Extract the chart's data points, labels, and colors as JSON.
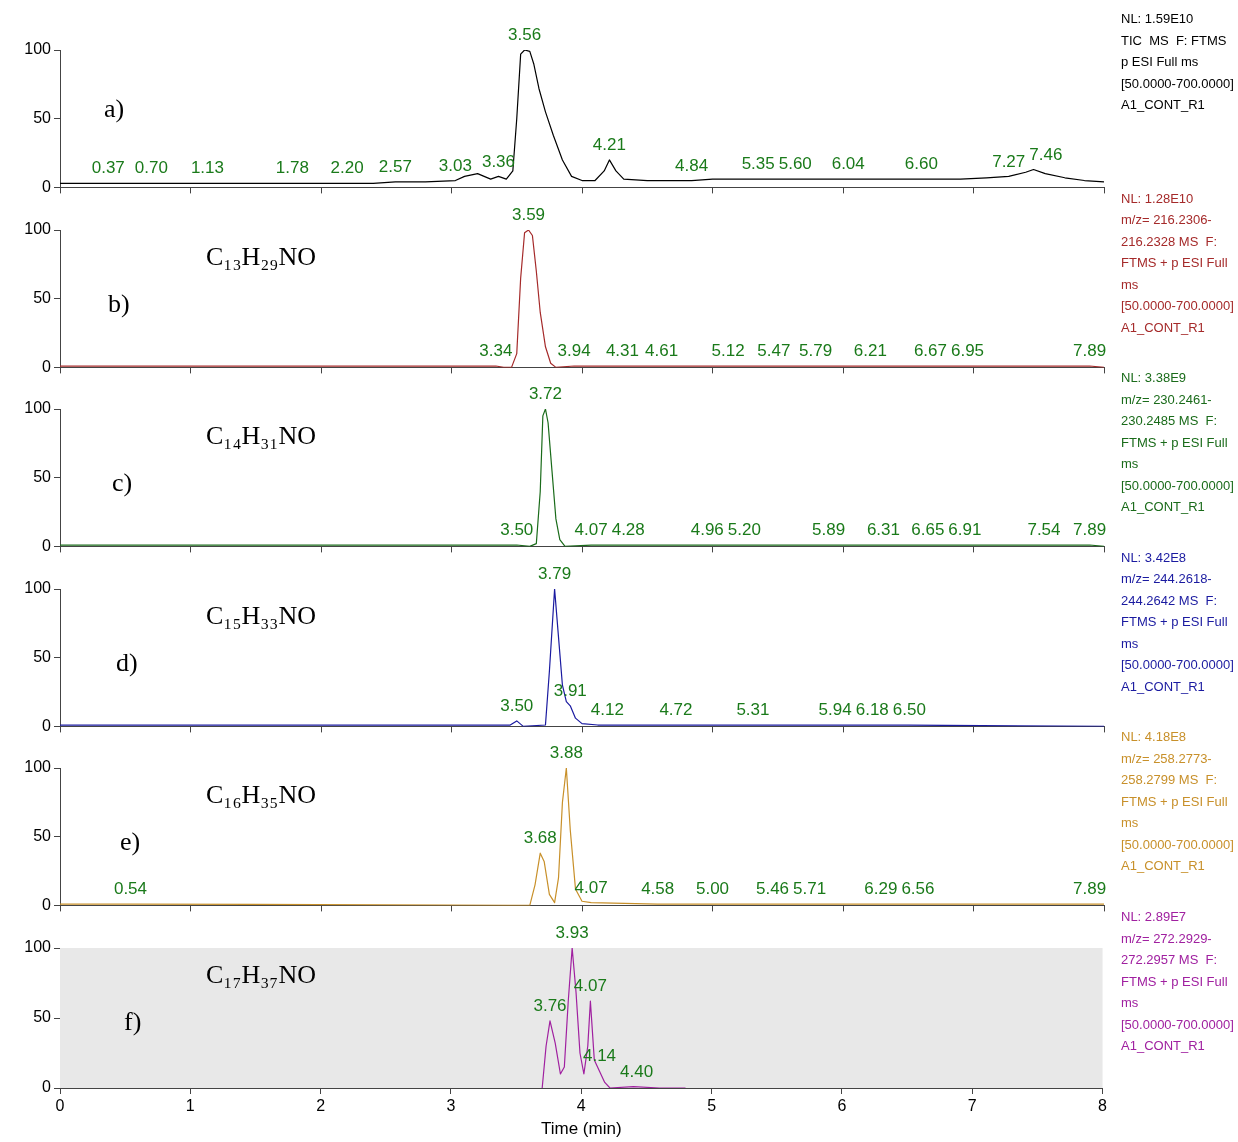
{
  "chart_data": [
    {
      "type": "line",
      "title": "a)",
      "xlim": [
        0,
        8
      ],
      "ylim": [
        0,
        100
      ],
      "yticks": [
        0,
        50,
        100
      ],
      "tick_labels": "y",
      "marker": "none",
      "x": [
        0,
        0.2,
        0.37,
        0.5,
        0.7,
        0.9,
        1.13,
        1.4,
        1.78,
        2.0,
        2.2,
        2.4,
        2.57,
        2.8,
        3.03,
        3.1,
        3.2,
        3.3,
        3.36,
        3.42,
        3.47,
        3.5,
        3.53,
        3.56,
        3.6,
        3.63,
        3.67,
        3.72,
        3.78,
        3.85,
        3.92,
        4.0,
        4.1,
        4.17,
        4.21,
        4.26,
        4.32,
        4.5,
        4.84,
        5.0,
        5.35,
        5.6,
        6.04,
        6.3,
        6.6,
        6.9,
        7.1,
        7.27,
        7.4,
        7.46,
        7.55,
        7.7,
        7.85,
        8.0
      ],
      "series": [
        {
          "color": "#000000",
          "values": [
            3,
            3,
            3,
            3,
            3,
            3,
            3,
            3,
            3,
            3,
            3,
            3,
            4,
            4,
            5,
            8,
            10,
            6,
            8,
            6,
            12,
            50,
            97,
            100,
            99,
            90,
            72,
            55,
            38,
            20,
            8,
            5,
            5,
            12,
            20,
            12,
            6,
            5,
            5,
            6,
            6,
            6,
            6,
            6,
            6,
            6,
            7,
            8,
            11,
            13,
            10,
            7,
            5,
            4
          ]
        }
      ],
      "annotations": [
        "NL: 1.59E10",
        "TIC  MS  F: FTMS",
        "p ESI Full ms",
        "[50.0000-700.0000]",
        "A1_CONT_R1",
        {
          "text": "0.37",
          "x": 0.37,
          "y": 3
        },
        {
          "text": "0.70",
          "x": 0.7,
          "y": 3
        },
        {
          "text": "1.13",
          "x": 1.13,
          "y": 3
        },
        {
          "text": "1.78",
          "x": 1.78,
          "y": 3
        },
        {
          "text": "2.20",
          "x": 2.2,
          "y": 3
        },
        {
          "text": "2.57",
          "x": 2.57,
          "y": 4
        },
        {
          "text": "3.03",
          "x": 3.03,
          "y": 5
        },
        {
          "text": "3.36",
          "x": 3.36,
          "y": 8
        },
        {
          "text": "3.56",
          "x": 3.56,
          "y": 100
        },
        {
          "text": "4.21",
          "x": 4.21,
          "y": 20
        },
        {
          "text": "4.84",
          "x": 4.84,
          "y": 5
        },
        {
          "text": "5.35",
          "x": 5.35,
          "y": 6
        },
        {
          "text": "5.60",
          "x": 5.6,
          "y": 6
        },
        {
          "text": "6.04",
          "x": 6.04,
          "y": 6
        },
        {
          "text": "6.60",
          "x": 6.6,
          "y": 6
        },
        {
          "text": "7.27",
          "x": 7.27,
          "y": 8
        },
        {
          "text": "7.46",
          "x": 7.46,
          "y": 13
        }
      ]
    },
    {
      "type": "line",
      "title": "b)",
      "subtitle": "C₁₃H₂₉NO",
      "xlim": [
        0,
        8
      ],
      "ylim": [
        0,
        100
      ],
      "yticks": [
        0,
        50,
        100
      ],
      "tick_labels": "y",
      "marker": "none",
      "x": [
        0,
        3.3,
        3.34,
        3.4,
        3.46,
        3.5,
        3.53,
        3.56,
        3.59,
        3.62,
        3.65,
        3.68,
        3.72,
        3.76,
        3.8,
        3.94,
        4.31,
        4.61,
        5.12,
        5.47,
        5.79,
        6.21,
        6.67,
        6.95,
        7.89,
        8.0
      ],
      "series": [
        {
          "color": "#a52a2a",
          "values": [
            1,
            1,
            1,
            0,
            0,
            10,
            65,
            98,
            100,
            96,
            70,
            40,
            15,
            3,
            0,
            1,
            1,
            1,
            1,
            1,
            1,
            1,
            1,
            1,
            1,
            0
          ]
        }
      ],
      "annotations": [
        "NL: 1.28E10",
        "m/z= 216.2306-",
        "216.2328 MS  F:",
        "FTMS + p ESI Full",
        "ms",
        "[50.0000-700.0000]",
        "A1_CONT_R1",
        {
          "text": "3.34",
          "x": 3.34,
          "y": 1
        },
        {
          "text": "3.59",
          "x": 3.59,
          "y": 100
        },
        {
          "text": "3.94",
          "x": 3.94,
          "y": 1
        },
        {
          "text": "4.31",
          "x": 4.31,
          "y": 1
        },
        {
          "text": "4.61",
          "x": 4.61,
          "y": 1
        },
        {
          "text": "5.12",
          "x": 5.12,
          "y": 1
        },
        {
          "text": "5.47",
          "x": 5.47,
          "y": 1
        },
        {
          "text": "5.79",
          "x": 5.79,
          "y": 1
        },
        {
          "text": "6.21",
          "x": 6.21,
          "y": 1
        },
        {
          "text": "6.67",
          "x": 6.67,
          "y": 1
        },
        {
          "text": "6.95",
          "x": 6.95,
          "y": 1
        },
        {
          "text": "7.89",
          "x": 7.89,
          "y": 1
        }
      ]
    },
    {
      "type": "line",
      "title": "c)",
      "subtitle": "C₁₄H₃₁NO",
      "xlim": [
        0,
        8
      ],
      "ylim": [
        0,
        100
      ],
      "yticks": [
        0,
        50,
        100
      ],
      "tick_labels": "y",
      "marker": "none",
      "x": [
        0,
        3.5,
        3.6,
        3.65,
        3.68,
        3.7,
        3.72,
        3.74,
        3.77,
        3.8,
        3.83,
        3.87,
        4.07,
        4.28,
        4.96,
        5.2,
        5.89,
        6.31,
        6.65,
        6.91,
        7.54,
        7.89,
        8
      ],
      "series": [
        {
          "color": "#1a6b1a",
          "values": [
            1,
            1,
            0,
            2,
            40,
            95,
            100,
            90,
            55,
            20,
            5,
            0,
            1,
            1,
            1,
            1,
            1,
            1,
            1,
            1,
            1,
            1,
            0
          ]
        }
      ],
      "annotations": [
        "NL: 3.38E9",
        "m/z= 230.2461-",
        "230.2485 MS  F:",
        "FTMS + p ESI Full",
        "ms",
        "[50.0000-700.0000]",
        "A1_CONT_R1",
        {
          "text": "3.50",
          "x": 3.5,
          "y": 1
        },
        {
          "text": "3.72",
          "x": 3.72,
          "y": 100
        },
        {
          "text": "4.07",
          "x": 4.07,
          "y": 1
        },
        {
          "text": "4.28",
          "x": 4.28,
          "y": 1
        },
        {
          "text": "4.96",
          "x": 4.96,
          "y": 1
        },
        {
          "text": "5.20",
          "x": 5.2,
          "y": 1
        },
        {
          "text": "5.89",
          "x": 5.89,
          "y": 1
        },
        {
          "text": "6.31",
          "x": 6.31,
          "y": 1
        },
        {
          "text": "6.65",
          "x": 6.65,
          "y": 1
        },
        {
          "text": "6.91",
          "x": 6.91,
          "y": 1
        },
        {
          "text": "7.54",
          "x": 7.54,
          "y": 1
        },
        {
          "text": "7.89",
          "x": 7.89,
          "y": 1
        }
      ]
    },
    {
      "type": "line",
      "title": "d)",
      "subtitle": "C₁₅H₃₃NO",
      "xlim": [
        0,
        8
      ],
      "ylim": [
        0,
        100
      ],
      "yticks": [
        0,
        50,
        100
      ],
      "tick_labels": "y",
      "marker": "none",
      "x": [
        0,
        3.45,
        3.5,
        3.55,
        3.72,
        3.75,
        3.79,
        3.82,
        3.85,
        3.88,
        3.91,
        3.95,
        4.0,
        4.12,
        4.72,
        5.31,
        5.94,
        6.18,
        6.5,
        8
      ],
      "series": [
        {
          "color": "#1a1aa0",
          "values": [
            1,
            1,
            4,
            0,
            1,
            40,
            100,
            65,
            30,
            18,
            15,
            6,
            2,
            1,
            1,
            1,
            1,
            1,
            1,
            0
          ]
        }
      ],
      "annotations": [
        "NL: 3.42E8",
        "m/z= 244.2618-",
        "244.2642 MS  F:",
        "FTMS + p ESI Full",
        "ms",
        "[50.0000-700.0000]",
        "A1_CONT_R1",
        {
          "text": "3.50",
          "x": 3.5,
          "y": 4
        },
        {
          "text": "3.79",
          "x": 3.79,
          "y": 100
        },
        {
          "text": "3.91",
          "x": 3.91,
          "y": 15
        },
        {
          "text": "4.12",
          "x": 4.12,
          "y": 1
        },
        {
          "text": "4.72",
          "x": 4.72,
          "y": 1
        },
        {
          "text": "5.31",
          "x": 5.31,
          "y": 1
        },
        {
          "text": "5.94",
          "x": 5.94,
          "y": 1
        },
        {
          "text": "6.18",
          "x": 6.18,
          "y": 1
        },
        {
          "text": "6.50",
          "x": 6.5,
          "y": 1
        }
      ]
    },
    {
      "type": "line",
      "title": "e)",
      "subtitle": "C₁₆H₃₅NO",
      "xlim": [
        0,
        8
      ],
      "ylim": [
        0,
        100
      ],
      "yticks": [
        0,
        50,
        100
      ],
      "tick_labels": "y",
      "marker": "none",
      "x": [
        0,
        0.54,
        3.6,
        3.64,
        3.68,
        3.71,
        3.75,
        3.79,
        3.82,
        3.85,
        3.88,
        3.91,
        3.95,
        4.0,
        4.07,
        4.58,
        5,
        5.46,
        5.71,
        6.29,
        6.56,
        7.89,
        8
      ],
      "series": [
        {
          "color": "#c8902a",
          "values": [
            1,
            1,
            0,
            15,
            38,
            32,
            8,
            2,
            20,
            75,
            100,
            55,
            12,
            3,
            2,
            1,
            1,
            1,
            1,
            1,
            1,
            1,
            1
          ]
        }
      ],
      "annotations": [
        "NL: 4.18E8",
        "m/z= 258.2773-",
        "258.2799 MS  F:",
        "FTMS + p ESI Full",
        "ms",
        "[50.0000-700.0000]",
        "A1_CONT_R1",
        {
          "text": "0.54",
          "x": 0.54,
          "y": 1
        },
        {
          "text": "3.68",
          "x": 3.68,
          "y": 38
        },
        {
          "text": "3.88",
          "x": 3.88,
          "y": 100
        },
        {
          "text": "4.07",
          "x": 4.07,
          "y": 2
        },
        {
          "text": "4.58",
          "x": 4.58,
          "y": 1
        },
        {
          "text": "5.00",
          "x": 5,
          "y": 1
        },
        {
          "text": "5.46",
          "x": 5.46,
          "y": 1
        },
        {
          "text": "5.71",
          "x": 5.71,
          "y": 1
        },
        {
          "text": "6.29",
          "x": 6.29,
          "y": 1
        },
        {
          "text": "6.56",
          "x": 6.56,
          "y": 1
        },
        {
          "text": "7.89",
          "x": 7.89,
          "y": 1
        }
      ]
    },
    {
      "type": "line",
      "title": "f)",
      "subtitle": "C₁₇H₃₇NO",
      "xlabel": "Time (min)",
      "xlim": [
        0,
        8
      ],
      "xticks": [
        0,
        1,
        2,
        3,
        4,
        5,
        6,
        7,
        8
      ],
      "ylim": [
        0,
        100
      ],
      "yticks": [
        0,
        50,
        100
      ],
      "marker": "none",
      "bands": [
        {
          "axis": "x",
          "from": 0,
          "to": 8,
          "color": "#e8e8e8"
        }
      ],
      "x": [
        3.7,
        3.73,
        3.76,
        3.8,
        3.84,
        3.87,
        3.9,
        3.93,
        3.96,
        3.99,
        4.02,
        4.05,
        4.07,
        4.1,
        4.14,
        4.18,
        4.22,
        4.4,
        4.6,
        4.8
      ],
      "series": [
        {
          "color": "#a020a0",
          "values": [
            0,
            30,
            48,
            32,
            10,
            15,
            62,
            100,
            68,
            25,
            10,
            30,
            62,
            20,
            12,
            4,
            0,
            1,
            0,
            0
          ]
        }
      ],
      "annotations": [
        "NL: 2.89E7",
        "m/z= 272.2929-",
        "272.2957 MS  F:",
        "FTMS + p ESI Full",
        "ms",
        "[50.0000-700.0000]",
        "A1_CONT_R1",
        {
          "text": "3.76",
          "x": 3.76,
          "y": 48
        },
        {
          "text": "3.93",
          "x": 3.93,
          "y": 100
        },
        {
          "text": "4.07",
          "x": 4.07,
          "y": 62
        },
        {
          "text": "4.14",
          "x": 4.14,
          "y": 12
        },
        {
          "text": "4.40",
          "x": 4.4,
          "y": 1
        }
      ]
    }
  ]
}
